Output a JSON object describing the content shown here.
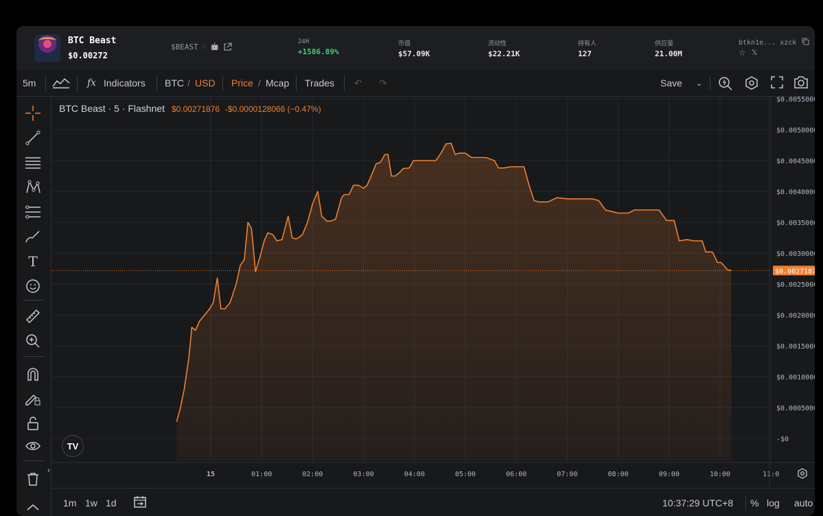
{
  "token": {
    "name": "BTC Beast",
    "price": "$0.00272",
    "ticker": "$BEAST",
    "ticker_emoji": "☄ 🤖",
    "address": "btkn1e... xzck",
    "stats": [
      {
        "label": "24H",
        "value": "+1586.89%"
      },
      {
        "label": "市值",
        "value": "$57.09K"
      },
      {
        "label": "流动性",
        "value": "$22.21K"
      },
      {
        "label": "持有人",
        "value": "127"
      },
      {
        "label": "供应量",
        "value": "21.00M"
      }
    ]
  },
  "toolbar": {
    "interval": "5m",
    "indicators": "Indicators",
    "base": "BTC",
    "slash": "/",
    "quote": "USD",
    "price": "Price",
    "mcap": "Mcap",
    "trades": "Trades",
    "save": "Save",
    "fx": "fx"
  },
  "legend": {
    "title": "BTC Beast · 5 · Flashnet",
    "last": "$0.00271876",
    "change": "-$0.0000128066 (−0.47%)"
  },
  "chart_data": {
    "type": "area",
    "x_ticks": [
      "15",
      "01:00",
      "02:00",
      "03:00",
      "04:00",
      "05:00",
      "06:00",
      "07:00",
      "08:00",
      "09:00",
      "10:00",
      "11:0"
    ],
    "y_ticks": [
      "$0.00550000",
      "$0.00500000",
      "$0.00450000",
      "$0.00400000",
      "$0.00350000",
      "$0.00300000",
      "$0.00250000",
      "$0.00200000",
      "$0.00150000",
      "$0.00100000",
      "$0.00050000",
      "-$0"
    ],
    "ylim": [
      0,
      0.0055
    ],
    "x_unit": "hours since 15 00:00",
    "current_price_label": "$0.00271876",
    "current_price": 0.00271876,
    "series": [
      {
        "color": "#f08030",
        "x": [
          -0.67,
          -0.6,
          -0.52,
          -0.43,
          -0.37,
          -0.3,
          -0.22,
          -0.12,
          -0.02,
          0.05,
          0.13,
          0.2,
          0.28,
          0.38,
          0.5,
          0.58,
          0.66,
          0.73,
          0.8,
          0.88,
          0.97,
          1.05,
          1.12,
          1.22,
          1.3,
          1.4,
          1.52,
          1.6,
          1.67,
          1.72,
          1.8,
          1.9,
          2.0,
          2.1,
          2.18,
          2.28,
          2.35,
          2.45,
          2.57,
          2.62,
          2.72,
          2.8,
          2.9,
          3.0,
          3.07,
          3.15,
          3.25,
          3.33,
          3.42,
          3.48,
          3.55,
          3.62,
          3.7,
          3.78,
          3.9,
          3.98,
          4.12,
          4.25,
          4.42,
          4.52,
          4.62,
          4.72,
          4.8,
          4.87,
          5.0,
          5.12,
          5.25,
          5.4,
          5.57,
          5.65,
          5.75,
          5.9,
          6.15,
          6.25,
          6.35,
          6.45,
          6.62,
          6.8,
          7.0,
          7.15,
          7.35,
          7.5,
          7.62,
          7.75,
          7.85,
          8.0,
          8.2,
          8.32,
          8.45,
          8.62,
          8.8,
          8.95,
          9.1,
          9.2,
          9.35,
          9.5,
          9.65,
          9.72,
          9.85,
          9.95,
          10.02,
          10.15,
          10.22
        ],
        "y": [
          0.00027,
          0.00048,
          0.0008,
          0.0013,
          0.0018,
          0.00175,
          0.0019,
          0.002,
          0.0021,
          0.0022,
          0.0026,
          0.0021,
          0.0021,
          0.0022,
          0.0025,
          0.0028,
          0.0029,
          0.0035,
          0.0034,
          0.0027,
          0.00295,
          0.0032,
          0.00333,
          0.0033,
          0.0032,
          0.00322,
          0.0036,
          0.00325,
          0.00323,
          0.00325,
          0.0033,
          0.0035,
          0.0038,
          0.004,
          0.0036,
          0.00352,
          0.00352,
          0.00355,
          0.0039,
          0.00395,
          0.00395,
          0.0041,
          0.0041,
          0.00405,
          0.0041,
          0.00425,
          0.00445,
          0.00447,
          0.0046,
          0.0046,
          0.00425,
          0.00425,
          0.0043,
          0.00437,
          0.00438,
          0.0045,
          0.0045,
          0.0045,
          0.0045,
          0.00462,
          0.00477,
          0.00478,
          0.0046,
          0.00462,
          0.00462,
          0.00455,
          0.00455,
          0.00455,
          0.0045,
          0.00438,
          0.00438,
          0.0044,
          0.0044,
          0.0041,
          0.00385,
          0.00383,
          0.00383,
          0.0039,
          0.00388,
          0.00388,
          0.00388,
          0.00388,
          0.00385,
          0.0037,
          0.00368,
          0.00365,
          0.00365,
          0.0037,
          0.0037,
          0.0037,
          0.0037,
          0.00353,
          0.00353,
          0.0032,
          0.00322,
          0.0032,
          0.0032,
          0.00302,
          0.00302,
          0.00285,
          0.00285,
          0.00273,
          0.00272
        ]
      }
    ]
  },
  "bottom": {
    "ranges": [
      "1m",
      "1w",
      "1d"
    ],
    "time": "10:37:29 UTC+8",
    "percent": "%",
    "log": "log",
    "auto": "auto"
  }
}
